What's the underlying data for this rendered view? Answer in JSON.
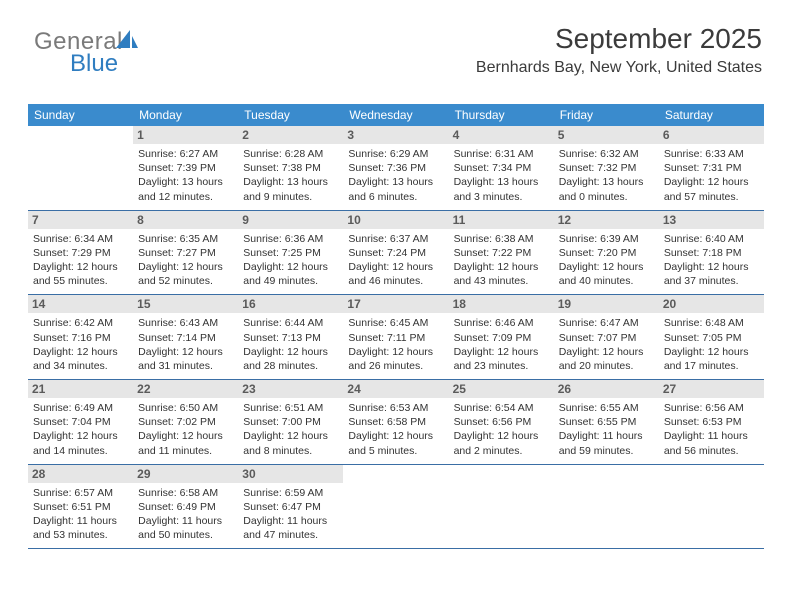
{
  "logo": {
    "general": "General",
    "blue": "Blue"
  },
  "title": "September 2025",
  "location": "Bernhards Bay, New York, United States",
  "colors": {
    "header_bg": "#3a8bcd",
    "header_text": "#ffffff",
    "daynum_bg": "#e6e6e6",
    "daynum_text": "#5b5b5b",
    "body_text": "#333333",
    "rule": "#3a6ea5",
    "logo_gray": "#7a7a7a",
    "logo_blue": "#2f7dc0",
    "title_color": "#3b3b3b"
  },
  "days_of_week": [
    "Sunday",
    "Monday",
    "Tuesday",
    "Wednesday",
    "Thursday",
    "Friday",
    "Saturday"
  ],
  "weeks": [
    [
      {
        "n": "",
        "sr": "",
        "ss": "",
        "dl": ""
      },
      {
        "n": "1",
        "sr": "6:27 AM",
        "ss": "7:39 PM",
        "dl": "13 hours and 12 minutes."
      },
      {
        "n": "2",
        "sr": "6:28 AM",
        "ss": "7:38 PM",
        "dl": "13 hours and 9 minutes."
      },
      {
        "n": "3",
        "sr": "6:29 AM",
        "ss": "7:36 PM",
        "dl": "13 hours and 6 minutes."
      },
      {
        "n": "4",
        "sr": "6:31 AM",
        "ss": "7:34 PM",
        "dl": "13 hours and 3 minutes."
      },
      {
        "n": "5",
        "sr": "6:32 AM",
        "ss": "7:32 PM",
        "dl": "13 hours and 0 minutes."
      },
      {
        "n": "6",
        "sr": "6:33 AM",
        "ss": "7:31 PM",
        "dl": "12 hours and 57 minutes."
      }
    ],
    [
      {
        "n": "7",
        "sr": "6:34 AM",
        "ss": "7:29 PM",
        "dl": "12 hours and 55 minutes."
      },
      {
        "n": "8",
        "sr": "6:35 AM",
        "ss": "7:27 PM",
        "dl": "12 hours and 52 minutes."
      },
      {
        "n": "9",
        "sr": "6:36 AM",
        "ss": "7:25 PM",
        "dl": "12 hours and 49 minutes."
      },
      {
        "n": "10",
        "sr": "6:37 AM",
        "ss": "7:24 PM",
        "dl": "12 hours and 46 minutes."
      },
      {
        "n": "11",
        "sr": "6:38 AM",
        "ss": "7:22 PM",
        "dl": "12 hours and 43 minutes."
      },
      {
        "n": "12",
        "sr": "6:39 AM",
        "ss": "7:20 PM",
        "dl": "12 hours and 40 minutes."
      },
      {
        "n": "13",
        "sr": "6:40 AM",
        "ss": "7:18 PM",
        "dl": "12 hours and 37 minutes."
      }
    ],
    [
      {
        "n": "14",
        "sr": "6:42 AM",
        "ss": "7:16 PM",
        "dl": "12 hours and 34 minutes."
      },
      {
        "n": "15",
        "sr": "6:43 AM",
        "ss": "7:14 PM",
        "dl": "12 hours and 31 minutes."
      },
      {
        "n": "16",
        "sr": "6:44 AM",
        "ss": "7:13 PM",
        "dl": "12 hours and 28 minutes."
      },
      {
        "n": "17",
        "sr": "6:45 AM",
        "ss": "7:11 PM",
        "dl": "12 hours and 26 minutes."
      },
      {
        "n": "18",
        "sr": "6:46 AM",
        "ss": "7:09 PM",
        "dl": "12 hours and 23 minutes."
      },
      {
        "n": "19",
        "sr": "6:47 AM",
        "ss": "7:07 PM",
        "dl": "12 hours and 20 minutes."
      },
      {
        "n": "20",
        "sr": "6:48 AM",
        "ss": "7:05 PM",
        "dl": "12 hours and 17 minutes."
      }
    ],
    [
      {
        "n": "21",
        "sr": "6:49 AM",
        "ss": "7:04 PM",
        "dl": "12 hours and 14 minutes."
      },
      {
        "n": "22",
        "sr": "6:50 AM",
        "ss": "7:02 PM",
        "dl": "12 hours and 11 minutes."
      },
      {
        "n": "23",
        "sr": "6:51 AM",
        "ss": "7:00 PM",
        "dl": "12 hours and 8 minutes."
      },
      {
        "n": "24",
        "sr": "6:53 AM",
        "ss": "6:58 PM",
        "dl": "12 hours and 5 minutes."
      },
      {
        "n": "25",
        "sr": "6:54 AM",
        "ss": "6:56 PM",
        "dl": "12 hours and 2 minutes."
      },
      {
        "n": "26",
        "sr": "6:55 AM",
        "ss": "6:55 PM",
        "dl": "11 hours and 59 minutes."
      },
      {
        "n": "27",
        "sr": "6:56 AM",
        "ss": "6:53 PM",
        "dl": "11 hours and 56 minutes."
      }
    ],
    [
      {
        "n": "28",
        "sr": "6:57 AM",
        "ss": "6:51 PM",
        "dl": "11 hours and 53 minutes."
      },
      {
        "n": "29",
        "sr": "6:58 AM",
        "ss": "6:49 PM",
        "dl": "11 hours and 50 minutes."
      },
      {
        "n": "30",
        "sr": "6:59 AM",
        "ss": "6:47 PM",
        "dl": "11 hours and 47 minutes."
      },
      {
        "n": "",
        "sr": "",
        "ss": "",
        "dl": ""
      },
      {
        "n": "",
        "sr": "",
        "ss": "",
        "dl": ""
      },
      {
        "n": "",
        "sr": "",
        "ss": "",
        "dl": ""
      },
      {
        "n": "",
        "sr": "",
        "ss": "",
        "dl": ""
      }
    ]
  ],
  "labels": {
    "sunrise": "Sunrise:",
    "sunset": "Sunset:",
    "daylight": "Daylight:"
  }
}
